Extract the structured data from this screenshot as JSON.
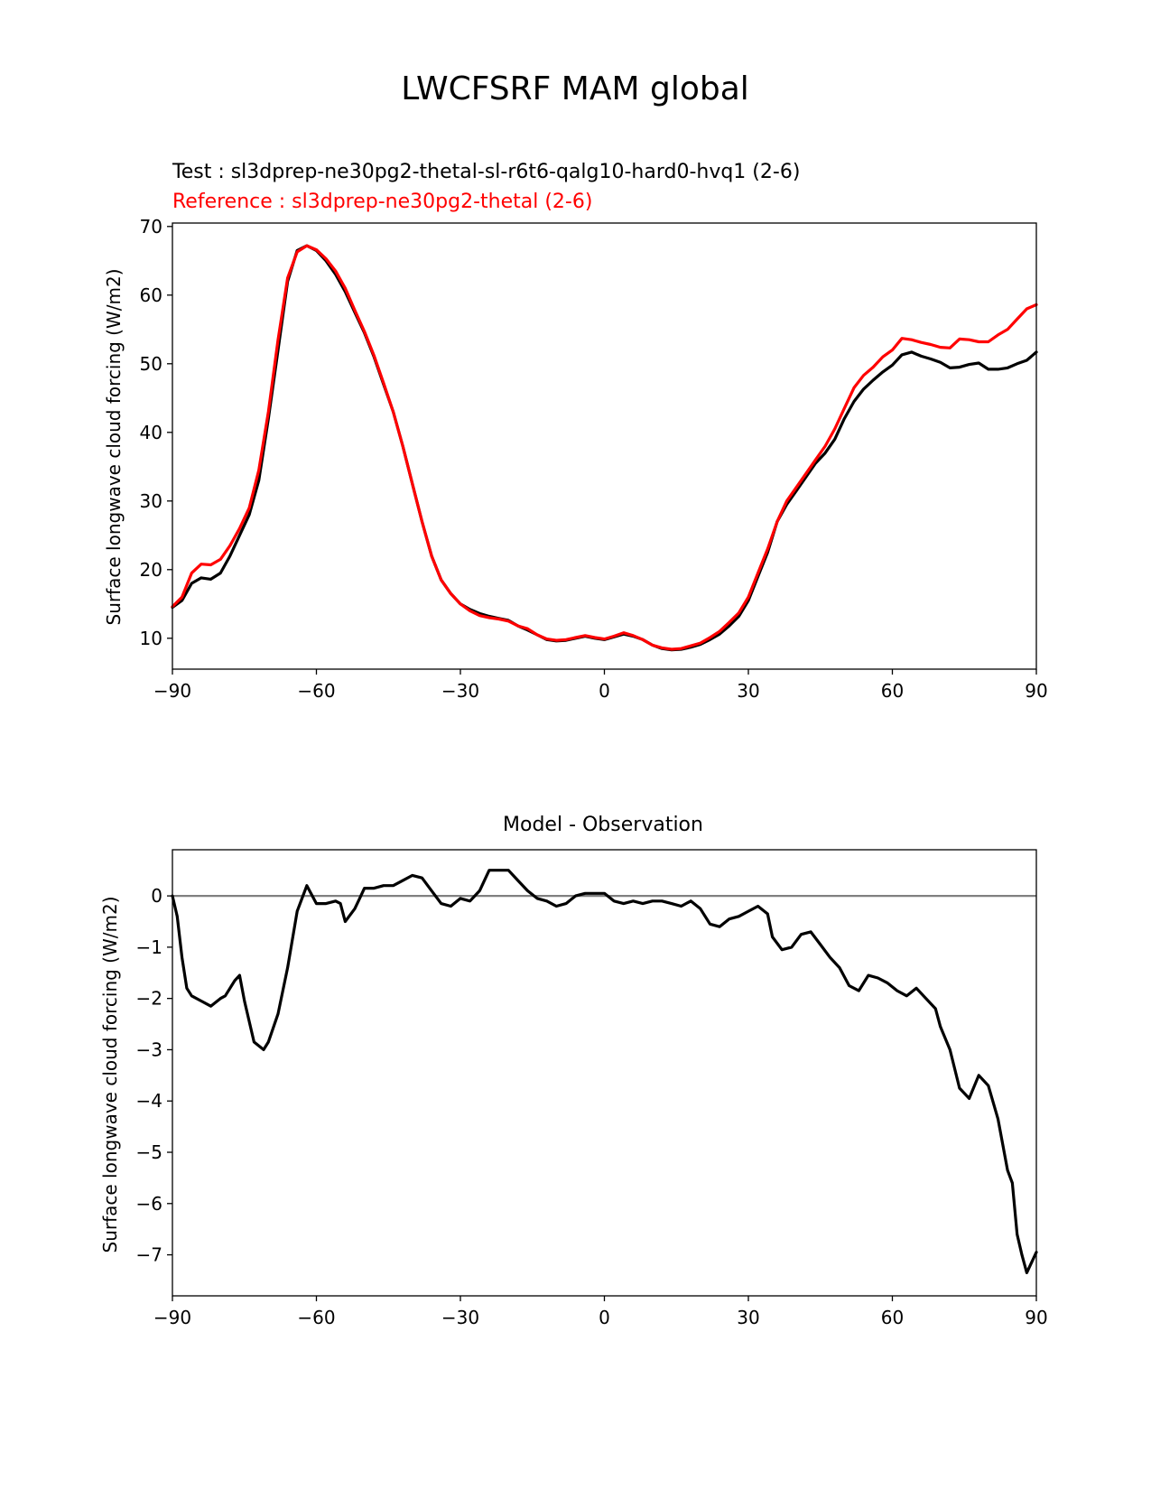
{
  "figure": {
    "title": "LWCFSRF MAM global"
  },
  "chart_data": [
    {
      "type": "line",
      "title_test": "Test : sl3dprep-ne30pg2-thetal-sl-r6t6-qalg10-hard0-hvq1 (2-6)",
      "title_reference": "Reference : sl3dprep-ne30pg2-thetal (2-6)",
      "title_test_color": "#000000",
      "title_reference_color": "#ff0000",
      "xlabel": "",
      "ylabel": "Surface longwave cloud forcing (W/m2)",
      "xlim": [
        -90,
        90
      ],
      "ylim": [
        5.5,
        70.5
      ],
      "xticks": [
        -90,
        -60,
        -30,
        0,
        30,
        60,
        90
      ],
      "xtick_labels": [
        "−90",
        "−60",
        "−30",
        "0",
        "30",
        "60",
        "90"
      ],
      "yticks": [
        10,
        20,
        30,
        40,
        50,
        60,
        70
      ],
      "ytick_labels": [
        "10",
        "20",
        "30",
        "40",
        "50",
        "60",
        "70"
      ],
      "grid": false,
      "series": [
        {
          "color": "#000000",
          "x": [
            -90,
            -88,
            -86,
            -84,
            -82,
            -80,
            -78,
            -76,
            -74,
            -72,
            -70,
            -68,
            -66,
            -64,
            -62,
            -60,
            -58,
            -56,
            -54,
            -52,
            -50,
            -48,
            -46,
            -44,
            -42,
            -40,
            -38,
            -36,
            -34,
            -32,
            -30,
            -28,
            -26,
            -24,
            -22,
            -20,
            -18,
            -16,
            -14,
            -12,
            -10,
            -8,
            -6,
            -4,
            -2,
            0,
            2,
            4,
            6,
            8,
            10,
            12,
            14,
            16,
            18,
            20,
            22,
            24,
            26,
            28,
            30,
            32,
            34,
            36,
            38,
            40,
            42,
            44,
            46,
            48,
            50,
            52,
            54,
            56,
            58,
            60,
            62,
            64,
            66,
            68,
            70,
            72,
            74,
            76,
            78,
            80,
            82,
            84,
            86,
            88,
            90
          ],
          "values": [
            14.5,
            15.5,
            18,
            18.8,
            18.6,
            19.5,
            22,
            25,
            28,
            33,
            42,
            52,
            62,
            66.5,
            67.2,
            66.5,
            65,
            63,
            60.5,
            57.5,
            54.5,
            51,
            47,
            43,
            38,
            32.5,
            27,
            22,
            18.5,
            16.5,
            15,
            14.2,
            13.6,
            13.2,
            12.9,
            12.6,
            11.8,
            11.2,
            10.5,
            9.8,
            9.6,
            9.7,
            10,
            10.3,
            10,
            9.8,
            10.2,
            10.6,
            10.3,
            9.8,
            9,
            8.5,
            8.3,
            8.4,
            8.7,
            9.1,
            9.8,
            10.6,
            11.8,
            13.2,
            15.5,
            19,
            22.5,
            27,
            29.5,
            31.5,
            33.5,
            35.5,
            37,
            39,
            42,
            44.5,
            46.3,
            47.6,
            48.8,
            49.8,
            51.3,
            51.7,
            51.1,
            50.7,
            50.2,
            49.4,
            49.5,
            49.9,
            50.1,
            49.2,
            49.2,
            49.4,
            50,
            50.5,
            51.7
          ]
        },
        {
          "color": "#ff0000",
          "x": [
            -90,
            -88,
            -86,
            -84,
            -82,
            -80,
            -78,
            -76,
            -74,
            -72,
            -70,
            -68,
            -66,
            -64,
            -62,
            -60,
            -58,
            -56,
            -54,
            -52,
            -50,
            -48,
            -46,
            -44,
            -42,
            -40,
            -38,
            -36,
            -34,
            -32,
            -30,
            -28,
            -26,
            -24,
            -22,
            -20,
            -18,
            -16,
            -14,
            -12,
            -10,
            -8,
            -6,
            -4,
            -2,
            0,
            2,
            4,
            6,
            8,
            10,
            12,
            14,
            16,
            18,
            20,
            22,
            24,
            26,
            28,
            30,
            32,
            34,
            36,
            38,
            40,
            42,
            44,
            46,
            48,
            50,
            52,
            54,
            56,
            58,
            60,
            62,
            64,
            66,
            68,
            70,
            72,
            74,
            76,
            78,
            80,
            82,
            84,
            86,
            88,
            90
          ],
          "values": [
            14.6,
            16,
            19.5,
            20.8,
            20.7,
            21.5,
            23.5,
            26,
            29,
            34.5,
            43,
            53.5,
            62.5,
            66.3,
            67.2,
            66.6,
            65.3,
            63.5,
            61,
            57.8,
            54.7,
            51.2,
            47.2,
            43,
            38,
            32.5,
            27,
            22,
            18.5,
            16.5,
            15,
            14,
            13.3,
            13,
            12.8,
            12.5,
            11.8,
            11.4,
            10.5,
            9.9,
            9.7,
            9.8,
            10.1,
            10.4,
            10.1,
            9.9,
            10.3,
            10.8,
            10.4,
            9.8,
            9,
            8.6,
            8.4,
            8.5,
            8.9,
            9.3,
            10.1,
            11,
            12.3,
            13.7,
            16,
            19.5,
            23,
            27,
            30,
            32,
            34,
            36,
            38,
            40.5,
            43.5,
            46.5,
            48.3,
            49.5,
            51,
            52,
            53.7,
            53.5,
            53.1,
            52.8,
            52.4,
            52.3,
            53.6,
            53.5,
            53.2,
            53.2,
            54.2,
            55,
            56.5,
            58,
            58.6
          ]
        }
      ]
    },
    {
      "type": "line",
      "title": "Model - Observation",
      "xlabel": "",
      "ylabel": "Surface longwave cloud forcing (W/m2)",
      "xlim": [
        -90,
        90
      ],
      "ylim": [
        -7.8,
        0.9
      ],
      "xticks": [
        -90,
        -60,
        -30,
        0,
        30,
        60,
        90
      ],
      "xtick_labels": [
        "−90",
        "−60",
        "−30",
        "0",
        "30",
        "60",
        "90"
      ],
      "yticks": [
        0,
        -1,
        -2,
        -3,
        -4,
        -5,
        -6,
        -7
      ],
      "ytick_labels": [
        "0",
        "−1",
        "−2",
        "−3",
        "−4",
        "−5",
        "−6",
        "−7"
      ],
      "grid": false,
      "reference_line": {
        "y": 0,
        "color": "#808080"
      },
      "series": [
        {
          "color": "#000000",
          "x": [
            -90,
            -89,
            -88,
            -87,
            -86,
            -84,
            -82,
            -80,
            -79,
            -77,
            -76,
            -75,
            -73,
            -71,
            -70,
            -68,
            -66,
            -64,
            -62,
            -60,
            -58,
            -56,
            -55,
            -54,
            -52,
            -51,
            -50,
            -48,
            -46,
            -44,
            -42,
            -40,
            -38,
            -36,
            -34,
            -32,
            -30,
            -28,
            -26,
            -24,
            -22,
            -20,
            -18,
            -16,
            -14,
            -12,
            -10,
            -8,
            -6,
            -4,
            -2,
            0,
            2,
            4,
            6,
            8,
            10,
            12,
            14,
            16,
            18,
            20,
            22,
            24,
            26,
            28,
            30,
            32,
            34,
            35,
            37,
            39,
            41,
            43,
            45,
            47,
            49,
            51,
            53,
            55,
            57,
            59,
            61,
            63,
            65,
            67,
            69,
            70,
            72,
            74,
            76,
            78,
            80,
            82,
            84,
            85,
            86,
            87,
            88,
            90
          ],
          "values": [
            0,
            -0.4,
            -1.2,
            -1.8,
            -1.95,
            -2.05,
            -2.15,
            -2.0,
            -1.95,
            -1.65,
            -1.55,
            -2.05,
            -2.85,
            -3.0,
            -2.85,
            -2.3,
            -1.4,
            -0.3,
            0.2,
            -0.15,
            -0.15,
            -0.1,
            -0.15,
            -0.5,
            -0.25,
            -0.05,
            0.15,
            0.15,
            0.2,
            0.2,
            0.3,
            0.4,
            0.35,
            0.1,
            -0.15,
            -0.2,
            -0.05,
            -0.1,
            0.1,
            0.5,
            0.5,
            0.5,
            0.3,
            0.1,
            -0.05,
            -0.1,
            -0.2,
            -0.15,
            0,
            0.05,
            0.05,
            0.05,
            -0.1,
            -0.15,
            -0.1,
            -0.15,
            -0.1,
            -0.1,
            -0.15,
            -0.2,
            -0.1,
            -0.25,
            -0.55,
            -0.6,
            -0.45,
            -0.4,
            -0.3,
            -0.2,
            -0.35,
            -0.8,
            -1.05,
            -1.0,
            -0.75,
            -0.7,
            -0.95,
            -1.2,
            -1.4,
            -1.75,
            -1.85,
            -1.55,
            -1.6,
            -1.7,
            -1.85,
            -1.95,
            -1.8,
            -2.0,
            -2.2,
            -2.55,
            -3.0,
            -3.75,
            -3.95,
            -3.5,
            -3.7,
            -4.35,
            -5.35,
            -5.6,
            -6.6,
            -7.0,
            -7.35,
            -6.95
          ]
        }
      ]
    }
  ]
}
